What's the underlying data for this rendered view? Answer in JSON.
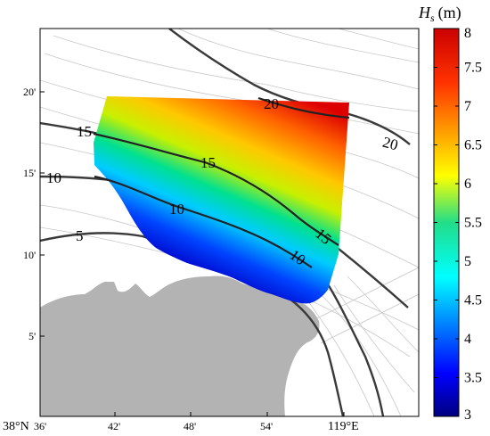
{
  "chart_data": {
    "type": "heatmap",
    "title": "",
    "colorbar": {
      "title_symbol": "H",
      "title_subscript": "s",
      "title_unit": "(m)",
      "range": [
        3,
        8
      ],
      "ticks": [
        "8",
        "7.5",
        "7",
        "6.5",
        "6",
        "5.5",
        "5",
        "4.5",
        "4",
        "3.5",
        "3"
      ],
      "colormap": "jet"
    },
    "x_axis": {
      "tick_labels": [
        "36'",
        "42'",
        "48'",
        "54'",
        "119°E"
      ],
      "corner_label": "38°N"
    },
    "y_axis": {
      "tick_labels": [
        "20'",
        "15'",
        "10'",
        "5'"
      ]
    },
    "bathymetry_contours": {
      "levels": [
        "5",
        "10",
        "15",
        "20"
      ],
      "labels": [
        {
          "level": "20",
          "text": "20"
        },
        {
          "level": "20",
          "text": "20"
        },
        {
          "level": "15",
          "text": "15"
        },
        {
          "level": "15",
          "text": "15"
        },
        {
          "level": "15",
          "text": "15"
        },
        {
          "level": "10",
          "text": "10"
        },
        {
          "level": "10",
          "text": "10"
        },
        {
          "level": "10",
          "text": "10"
        },
        {
          "level": "5",
          "text": "5"
        }
      ]
    },
    "wave_height_field": {
      "min": 3,
      "max": 8,
      "description_of_gradient": [
        "low near coast (~3-4 m)",
        "high offshore NE (~8 m)"
      ]
    },
    "grid": false,
    "legend_placement": "right"
  },
  "colors": {
    "land": "#b3b3b3",
    "contour_major": "#3a3a3a",
    "contour_minor": "#c8c8c8",
    "background": "#ffffff"
  }
}
